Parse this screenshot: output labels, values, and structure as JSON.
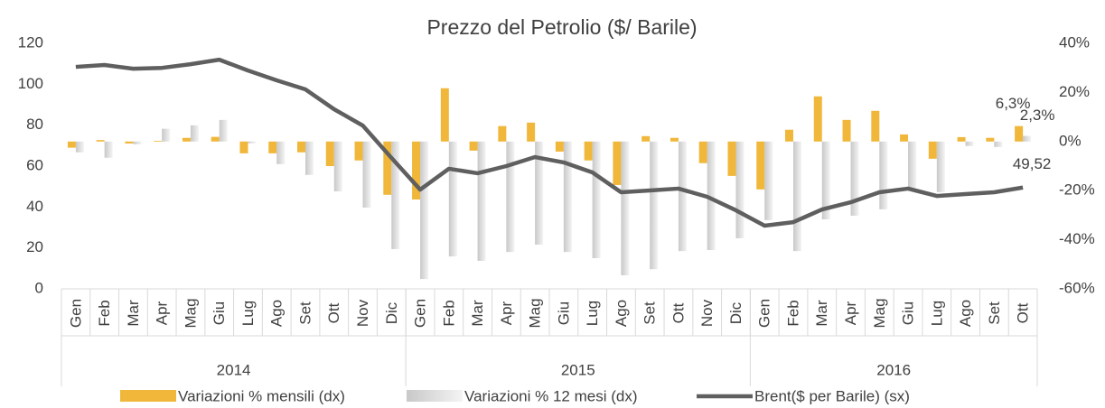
{
  "chart_data": {
    "type": "combo",
    "title": "Prezzo del Petrolio ($/ Barile)",
    "categories": [
      "Gen",
      "Feb",
      "Mar",
      "Apr",
      "Mag",
      "Giu",
      "Lug",
      "Ago",
      "Set",
      "Ott",
      "Nov",
      "Dic",
      "Gen",
      "Feb",
      "Mar",
      "Apr",
      "Mag",
      "Giu",
      "Lug",
      "Ago",
      "Set",
      "Ott",
      "Nov",
      "Dic",
      "Gen",
      "Feb",
      "Mar",
      "Apr",
      "Mag",
      "Giu",
      "Lug",
      "Ago",
      "Set",
      "Ott"
    ],
    "category_groups": [
      {
        "label": "2014",
        "size": 12
      },
      {
        "label": "2015",
        "size": 12
      },
      {
        "label": "2016",
        "size": 10
      }
    ],
    "series": [
      {
        "name": "Variazioni % mensili (dx)",
        "type": "bar",
        "axis": "y2",
        "color": "#f0b73a",
        "values": [
          -2.5,
          0.6,
          -0.8,
          0.3,
          1.5,
          1.9,
          -4.8,
          -4.8,
          -4.4,
          -10,
          -7.7,
          -21.7,
          -23.6,
          21.7,
          -3.7,
          6.3,
          7.7,
          -4.1,
          -7.7,
          -17.7,
          2.2,
          1.5,
          -8.8,
          -14,
          -19.5,
          4.8,
          18.4,
          8.8,
          12.5,
          2.9,
          -7,
          1.8,
          1.5,
          6.3
        ],
        "value_labels": [
          null,
          null,
          null,
          null,
          null,
          null,
          null,
          null,
          null,
          null,
          null,
          null,
          null,
          null,
          null,
          null,
          null,
          null,
          null,
          null,
          null,
          null,
          null,
          null,
          null,
          null,
          null,
          null,
          null,
          null,
          null,
          null,
          null,
          "6,3%"
        ]
      },
      {
        "name": "Variazioni % 12 mesi (dx)",
        "type": "bar",
        "axis": "y2",
        "color": "#d9d9d9",
        "values": [
          -4.4,
          -6.6,
          -1.1,
          5.2,
          6.6,
          8.8,
          -0.7,
          -9.2,
          -13.6,
          -20.3,
          -26.9,
          -43.8,
          -56,
          -46.8,
          -48.6,
          -45,
          -42,
          -45,
          -47.5,
          -54.5,
          -52,
          -44.6,
          -44.2,
          -39.4,
          -32,
          -44.6,
          -31.7,
          -30.2,
          -27.6,
          -19.9,
          -20.6,
          -1.8,
          -2.2,
          2.3
        ],
        "value_labels": [
          null,
          null,
          null,
          null,
          null,
          null,
          null,
          null,
          null,
          null,
          null,
          null,
          null,
          null,
          null,
          null,
          null,
          null,
          null,
          null,
          null,
          null,
          null,
          null,
          null,
          null,
          null,
          null,
          null,
          null,
          null,
          null,
          null,
          "2,3%"
        ]
      },
      {
        "name": "Brent($ per Barile) (sx)",
        "type": "line",
        "axis": "y",
        "color": "#5f5f5f",
        "values": [
          108.5,
          109.4,
          107.6,
          108,
          109.8,
          112,
          106.7,
          101.9,
          97.5,
          87.8,
          79.8,
          64,
          48.5,
          58.7,
          56.5,
          60,
          64.4,
          61.8,
          56.9,
          47.2,
          48.1,
          49,
          45,
          38.4,
          30.9,
          32.6,
          38.8,
          42.3,
          47.2,
          49,
          45.4,
          46.3,
          47.2,
          49.52
        ],
        "value_labels": [
          null,
          null,
          null,
          null,
          null,
          null,
          null,
          null,
          null,
          null,
          null,
          null,
          null,
          null,
          null,
          null,
          null,
          null,
          null,
          null,
          null,
          null,
          null,
          null,
          null,
          null,
          null,
          null,
          null,
          null,
          null,
          null,
          null,
          "49,52"
        ]
      }
    ],
    "ylim": [
      0,
      120
    ],
    "yticks": [
      0,
      20,
      40,
      60,
      80,
      100,
      120
    ],
    "y2lim": [
      -60,
      40
    ],
    "y2ticks": [
      {
        "value": -60,
        "label": "-60%"
      },
      {
        "value": -40,
        "label": "-40%"
      },
      {
        "value": -20,
        "label": "-20%"
      },
      {
        "value": 0,
        "label": "0%"
      },
      {
        "value": 20,
        "label": "20%"
      },
      {
        "value": 40,
        "label": "40%"
      }
    ],
    "legend": "bottom"
  }
}
